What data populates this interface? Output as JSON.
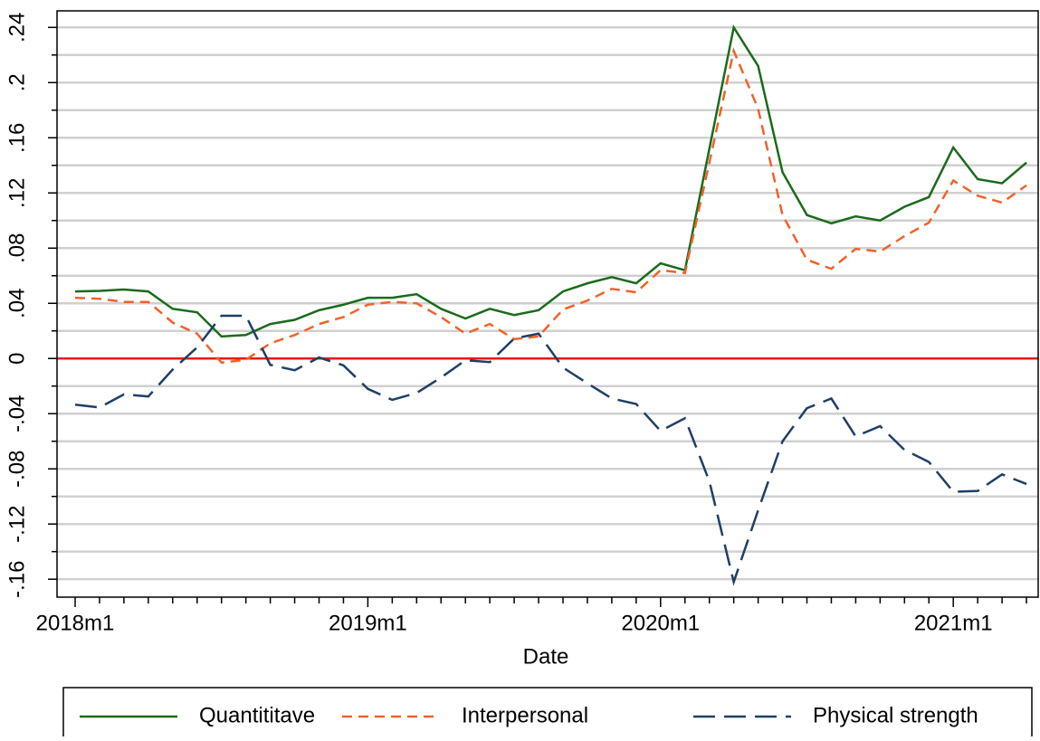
{
  "chart_data": {
    "type": "line",
    "x_label": "Date",
    "categories": [
      "2018m1",
      null,
      null,
      null,
      null,
      null,
      null,
      null,
      null,
      null,
      null,
      null,
      "2019m1",
      null,
      null,
      null,
      null,
      null,
      null,
      null,
      null,
      null,
      null,
      null,
      "2020m1",
      null,
      null,
      null,
      null,
      null,
      null,
      null,
      null,
      null,
      null,
      null,
      "2021m1",
      null,
      null,
      null
    ],
    "series": [
      {
        "name": "Quantititave",
        "color": "#1a6b1a",
        "dash": "none",
        "values": [
          0.0486,
          0.049,
          0.05,
          0.0486,
          0.036,
          0.0335,
          0.016,
          0.017,
          0.025,
          0.028,
          0.035,
          0.039,
          0.044,
          0.044,
          0.0466,
          0.036,
          0.029,
          0.036,
          0.0315,
          0.035,
          0.0486,
          0.0545,
          0.059,
          0.0545,
          0.069,
          0.064,
          0.152,
          0.24,
          0.212,
          0.135,
          0.104,
          0.098,
          0.103,
          0.1,
          0.11,
          0.117,
          0.153,
          0.13,
          0.127,
          0.142
        ]
      },
      {
        "name": "Interpersonal",
        "color": "#f0622a",
        "dash": "11 7",
        "values": [
          0.044,
          0.0433,
          0.041,
          0.041,
          0.026,
          0.018,
          -0.003,
          -0.001,
          0.011,
          0.017,
          0.025,
          0.03,
          0.039,
          0.041,
          0.04,
          0.03,
          0.018,
          0.025,
          0.014,
          0.016,
          0.0355,
          0.042,
          0.0505,
          0.048,
          0.064,
          0.062,
          0.142,
          0.223,
          0.181,
          0.104,
          0.0716,
          0.065,
          0.0795,
          0.0775,
          0.0887,
          0.0985,
          0.129,
          0.118,
          0.113,
          0.1255
        ]
      },
      {
        "name": "Physical strength",
        "color": "#1f3f66",
        "dash": "24 10",
        "values": [
          -0.0335,
          -0.0355,
          -0.026,
          -0.0275,
          -0.008,
          0.008,
          0.031,
          0.031,
          -0.0046,
          -0.0085,
          0.0007,
          -0.005,
          -0.022,
          -0.03,
          -0.025,
          -0.0138,
          -0.0013,
          -0.0026,
          0.0145,
          0.018,
          -0.0066,
          -0.018,
          -0.029,
          -0.033,
          -0.0525,
          -0.0433,
          -0.089,
          -0.162,
          -0.11,
          -0.06,
          -0.036,
          -0.029,
          -0.0565,
          -0.049,
          -0.0663,
          -0.075,
          -0.0966,
          -0.096,
          -0.084,
          -0.091
        ]
      }
    ],
    "ylim": [
      -0.173,
      0.252
    ],
    "yticks": [
      {
        "value": -0.16,
        "label": "-.16"
      },
      {
        "value": -0.12,
        "label": "-.12"
      },
      {
        "value": -0.08,
        "label": "-.08"
      },
      {
        "value": -0.04,
        "label": "-.04"
      },
      0,
      {
        "value": 0.04,
        "label": ".04"
      },
      {
        "value": 0.08,
        "label": ".08"
      },
      {
        "value": 0.12,
        "label": ".12"
      },
      {
        "value": 0.16,
        "label": ".16"
      },
      {
        "value": 0.2,
        "label": ".2"
      },
      {
        "value": 0.24,
        "label": ".24"
      }
    ],
    "yminorticks": [
      -0.14,
      -0.1,
      -0.06,
      -0.02,
      0.02,
      0.06,
      0.1,
      0.14,
      0.18,
      0.22
    ],
    "grid": true,
    "hline": {
      "value": 0,
      "color": "#e8181a"
    },
    "legend": "bottom"
  }
}
